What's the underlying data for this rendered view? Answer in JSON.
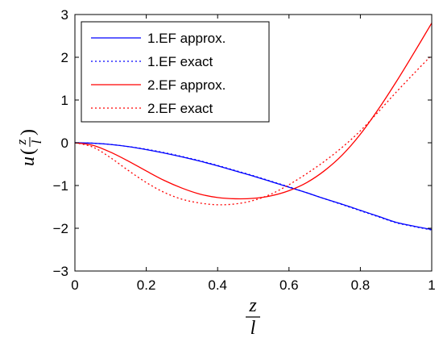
{
  "chart_data": {
    "type": "line",
    "title": "",
    "xlabel": {
      "numerator": "z",
      "denominator": "l"
    },
    "ylabel": {
      "function": "u",
      "open": "(",
      "numerator": "z",
      "denominator": "l",
      "close": ")"
    },
    "xlim": [
      0,
      1
    ],
    "ylim": [
      -3,
      3
    ],
    "xticks": [
      "0",
      "0.2",
      "0.4",
      "0.6",
      "0.8",
      "1"
    ],
    "yticks": [
      "3",
      "2",
      "1",
      "0",
      "−1",
      "−2",
      "−3"
    ],
    "grid": false,
    "legend_position": "top-left",
    "x": [
      0,
      0.05,
      0.1,
      0.15,
      0.2,
      0.25,
      0.3,
      0.35,
      0.4,
      0.45,
      0.5,
      0.55,
      0.6,
      0.65,
      0.7,
      0.75,
      0.8,
      0.85,
      0.9,
      0.95,
      1
    ],
    "series": [
      {
        "name": "1.EF approx.",
        "color": "#0000ff",
        "dash": "solid",
        "values": [
          0,
          -0.01,
          -0.04,
          -0.09,
          -0.16,
          -0.24,
          -0.33,
          -0.43,
          -0.54,
          -0.66,
          -0.78,
          -0.91,
          -1.04,
          -1.17,
          -1.31,
          -1.44,
          -1.58,
          -1.72,
          -1.86,
          -1.95,
          -2.03
        ]
      },
      {
        "name": "1.EF exact",
        "color": "#0000ff",
        "dash": "dotted",
        "values": [
          0,
          -0.01,
          -0.04,
          -0.09,
          -0.15,
          -0.23,
          -0.32,
          -0.42,
          -0.53,
          -0.65,
          -0.77,
          -0.9,
          -1.03,
          -1.17,
          -1.31,
          -1.45,
          -1.59,
          -1.73,
          -1.87,
          -1.96,
          -2.04
        ]
      },
      {
        "name": "2.EF approx.",
        "color": "#ff0000",
        "dash": "solid",
        "values": [
          0,
          -0.06,
          -0.22,
          -0.43,
          -0.66,
          -0.88,
          -1.06,
          -1.2,
          -1.28,
          -1.31,
          -1.3,
          -1.24,
          -1.12,
          -0.93,
          -0.65,
          -0.28,
          0.2,
          0.78,
          1.42,
          2.1,
          2.8
        ]
      },
      {
        "name": "2.EF exact",
        "color": "#ff0000",
        "dash": "dotted",
        "values": [
          0,
          -0.1,
          -0.35,
          -0.65,
          -0.93,
          -1.16,
          -1.32,
          -1.41,
          -1.45,
          -1.43,
          -1.35,
          -1.2,
          -0.98,
          -0.72,
          -0.43,
          -0.1,
          0.28,
          0.72,
          1.18,
          1.62,
          2.05
        ]
      }
    ]
  }
}
